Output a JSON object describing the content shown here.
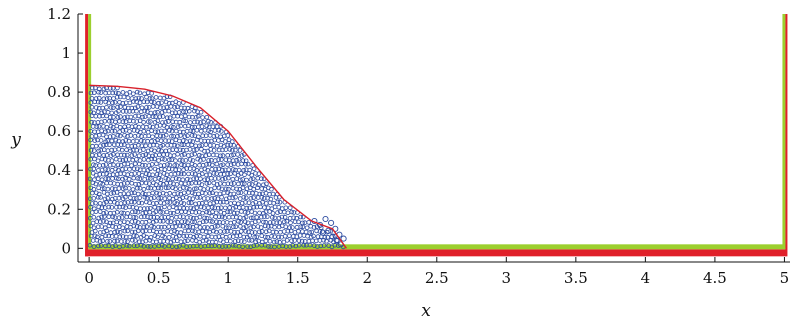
{
  "chart_data": {
    "type": "scatter",
    "title": "",
    "xlabel": "x",
    "ylabel": "y",
    "xlim": [
      -0.08,
      5.04
    ],
    "ylim": [
      -0.07,
      1.2
    ],
    "xticks": [
      0,
      0.5,
      1,
      1.5,
      2,
      2.5,
      3,
      3.5,
      4,
      4.5,
      5
    ],
    "xtick_labels": [
      "0",
      "0.5",
      "1",
      "1.5",
      "2",
      "2.5",
      "3",
      "3.5",
      "4",
      "4.5",
      "5"
    ],
    "yticks": [
      0,
      0.2,
      0.4,
      0.6,
      0.8,
      1,
      1.2
    ],
    "ytick_labels": [
      "0",
      "0.2",
      "0.4",
      "0.6",
      "0.8",
      "1",
      "1.2"
    ],
    "grid": false,
    "legend": "none",
    "colors": {
      "fluid_particles": "#2b4aa0",
      "reference_curve": "#d8202a",
      "boundary_inner": "#9ccf2e",
      "boundary_outer": "#e0202a"
    },
    "series": [
      {
        "kind": "particles",
        "description_shape": "water column collapsing, bounded by the free-surface curve",
        "x_range": [
          0,
          1.85
        ],
        "y_range": [
          0,
          0.83
        ]
      },
      {
        "kind": "reference-curve",
        "x": [
          0.0,
          0.2,
          0.4,
          0.6,
          0.8,
          1.0,
          1.2,
          1.4,
          1.6,
          1.75,
          1.85
        ],
        "y": [
          0.835,
          0.83,
          0.815,
          0.78,
          0.72,
          0.6,
          0.42,
          0.25,
          0.14,
          0.1,
          0.0
        ]
      },
      {
        "kind": "boundary-walls",
        "left_wall_x": 0,
        "right_wall_x": 5,
        "floor_y": 0,
        "wall_top_y": 1.2
      }
    ]
  }
}
